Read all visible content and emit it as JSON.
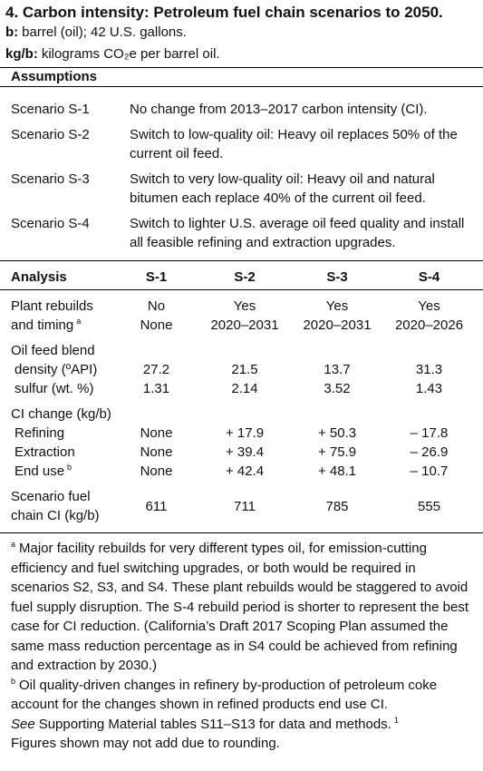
{
  "header": {
    "title": "4. Carbon intensity: Petroleum fuel chain scenarios to 2050.",
    "definitions": [
      {
        "term": "b:",
        "text": "barrel (oil); 42 U.S. gallons."
      },
      {
        "term": "kg/b:",
        "text": "kilograms CO₂e per barrel oil."
      }
    ]
  },
  "assumptions": {
    "heading": "Assumptions",
    "rows": [
      [
        "Scenario S-1",
        "No change from 2013–2017 carbon intensity (CI)."
      ],
      [
        "Scenario S-2",
        "Switch to low-quality oil: Heavy oil replaces 50% of the current oil feed."
      ],
      [
        "Scenario S-3",
        "Switch to very low-quality oil: Heavy oil and natural bitumen each replace 40% of the current oil feed."
      ],
      [
        "Scenario S-4",
        "Switch to lighter U.S. average oil feed quality and install all feasible refining and extraction upgrades."
      ]
    ]
  },
  "analysis": {
    "header": [
      "Analysis",
      "S-1",
      "S-2",
      "S-3",
      "S-4"
    ],
    "groups": [
      {
        "rows": [
          {
            "label": [
              "Plant rebuilds"
            ],
            "cells": [
              "No",
              "Yes",
              "Yes",
              "Yes"
            ]
          },
          {
            "label": [
              "and timing"
            ],
            "note": "a",
            "cells": [
              "None",
              "2020–2031",
              "2020–2031",
              "2020–2026"
            ]
          }
        ]
      },
      {
        "rows": [
          {
            "label": [
              "Oil feed blend"
            ]
          },
          {
            "label": [
              "density (ºAPI)"
            ],
            "cells": [
              "27.2",
              "21.5",
              "13.7",
              "31.3"
            ]
          },
          {
            "label": [
              "sulfur (wt. %)"
            ],
            "cells": [
              "1.31",
              "2.14",
              "3.52",
              "1.43"
            ]
          }
        ]
      },
      {
        "rows": [
          {
            "label": [
              "CI change (kg/b)"
            ]
          },
          {
            "label": [
              "Refining"
            ],
            "cells": [
              "None",
              "+ 17.9",
              "+ 50.3",
              "– 17.8"
            ]
          },
          {
            "label": [
              "Extraction"
            ],
            "cells": [
              "None",
              "+ 39.4",
              "+ 75.9",
              "– 26.9"
            ]
          },
          {
            "label": [
              "End use"
            ],
            "note": "b",
            "cells": [
              "None",
              "+ 42.4",
              "+ 48.1",
              "– 10.7"
            ]
          }
        ]
      },
      {
        "rows": [
          {
            "label": [
              "Scenario fuel",
              "chain CI (kg/b)"
            ],
            "cells": [
              "611",
              "711",
              "785",
              "555"
            ]
          }
        ]
      }
    ]
  },
  "notes": {
    "footnotes": [
      {
        "mark": "a",
        "text": "Major facility rebuilds for very different types oil, for emission-cutting efficiency and fuel switching upgrades, or both would be required in scenarios S2, S3, and S4.  These plant rebuilds would be staggered to avoid fuel supply disruption.  The S-4 rebuild period is shorter to represent the best case for CI reduction. (California’s Draft 2017 Scoping Plan assumed the same mass reduction percentage as in S4 could be achieved from refining and extraction by 2030.)"
      },
      {
        "mark": "b",
        "text": "Oil quality-driven changes in refinery by-production of petroleum coke account for the changes shown in refined products end use CI."
      }
    ],
    "see": {
      "emphasis": "See",
      "text": "Supporting Material tables S11–S13 for data and methods.",
      "mark": "1"
    },
    "rounding": "Figures shown may not add due to rounding."
  }
}
